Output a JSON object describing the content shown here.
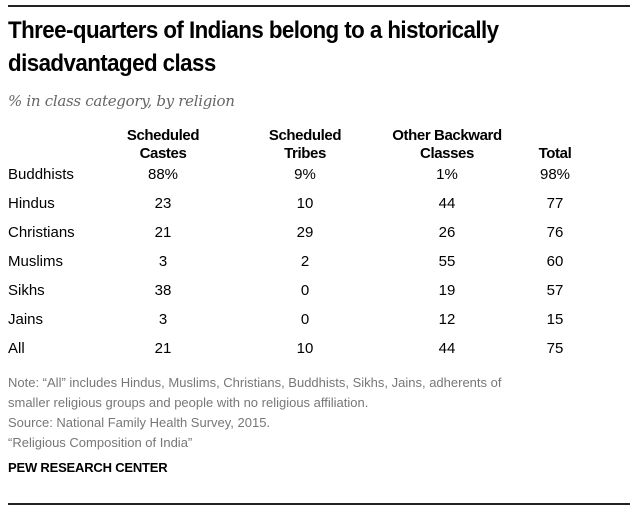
{
  "chart_data": {
    "type": "table",
    "title": "Three-quarters of Indians belong to a historically disadvantaged class",
    "subtitle": "% in class category, by religion",
    "columns": [
      "Scheduled Castes",
      "Scheduled Tribes",
      "Other Backward Classes",
      "Total"
    ],
    "rows": [
      {
        "label": "Buddhists",
        "values": [
          "88%",
          "9%",
          "1%",
          "98%"
        ]
      },
      {
        "label": "Hindus",
        "values": [
          "23",
          "10",
          "44",
          "77"
        ]
      },
      {
        "label": "Christians",
        "values": [
          "21",
          "29",
          "26",
          "76"
        ]
      },
      {
        "label": "Muslims",
        "values": [
          "3",
          "2",
          "55",
          "60"
        ]
      },
      {
        "label": "Sikhs",
        "values": [
          "38",
          "0",
          "19",
          "57"
        ]
      },
      {
        "label": "Jains",
        "values": [
          "3",
          "0",
          "12",
          "15"
        ]
      },
      {
        "label": "All",
        "values": [
          "21",
          "10",
          "44",
          "75"
        ]
      }
    ]
  },
  "header_lines": [
    [
      "Scheduled",
      "Castes"
    ],
    [
      "Scheduled",
      "Tribes"
    ],
    [
      "Other Backward",
      "Classes"
    ],
    [
      "",
      "Total"
    ]
  ],
  "notes": [
    "Note: “All” includes Hindus, Muslims, Christians, Buddhists, Sikhs, Jains, adherents of",
    "smaller religious groups and people with no religious affiliation.",
    "Source: National Family Health Survey, 2015.",
    "“Religious Composition of India”"
  ],
  "logo": "PEW RESEARCH CENTER"
}
